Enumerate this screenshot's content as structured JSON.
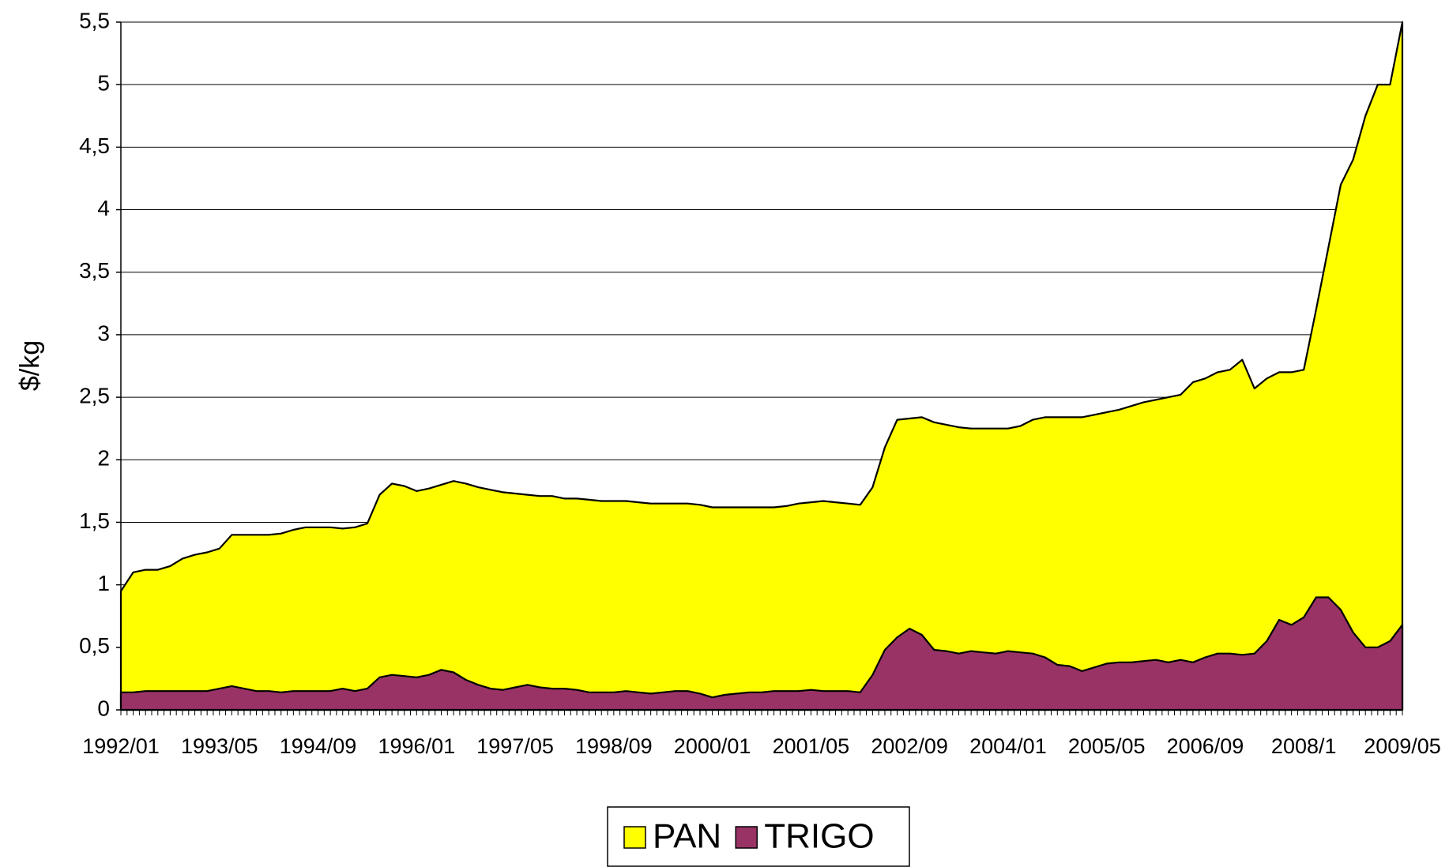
{
  "chart_data": {
    "type": "area",
    "y_label": "$/kg",
    "categories": [
      "1992/01",
      null,
      null,
      null,
      null,
      null,
      null,
      null,
      "1993/05",
      null,
      null,
      null,
      null,
      null,
      null,
      null,
      "1994/09",
      null,
      null,
      null,
      null,
      null,
      null,
      null,
      "1996/01",
      null,
      null,
      null,
      null,
      null,
      null,
      null,
      "1997/05",
      null,
      null,
      null,
      null,
      null,
      null,
      null,
      "1998/09",
      null,
      null,
      null,
      null,
      null,
      null,
      null,
      "2000/01",
      null,
      null,
      null,
      null,
      null,
      null,
      null,
      "2001/05",
      null,
      null,
      null,
      null,
      null,
      null,
      null,
      "2002/09",
      null,
      null,
      null,
      null,
      null,
      null,
      null,
      "2004/01",
      null,
      null,
      null,
      null,
      null,
      null,
      null,
      "2005/05",
      null,
      null,
      null,
      null,
      null,
      null,
      null,
      "2006/09",
      null,
      null,
      null,
      null,
      null,
      null,
      null,
      "2008/1",
      null,
      null,
      null,
      null,
      null,
      null,
      null,
      "2009/05"
    ],
    "series": [
      {
        "name": "PAN",
        "color": "#ffff00",
        "values": [
          0.95,
          1.1,
          1.12,
          1.12,
          1.15,
          1.21,
          1.24,
          1.26,
          1.29,
          1.4,
          1.4,
          1.4,
          1.4,
          1.41,
          1.44,
          1.46,
          1.46,
          1.46,
          1.45,
          1.46,
          1.49,
          1.72,
          1.81,
          1.79,
          1.75,
          1.77,
          1.8,
          1.83,
          1.81,
          1.78,
          1.76,
          1.74,
          1.73,
          1.72,
          1.71,
          1.71,
          1.69,
          1.69,
          1.68,
          1.67,
          1.67,
          1.67,
          1.66,
          1.65,
          1.65,
          1.65,
          1.65,
          1.64,
          1.62,
          1.62,
          1.62,
          1.62,
          1.62,
          1.62,
          1.63,
          1.65,
          1.66,
          1.67,
          1.66,
          1.65,
          1.64,
          1.78,
          2.1,
          2.32,
          2.33,
          2.34,
          2.3,
          2.28,
          2.26,
          2.25,
          2.25,
          2.25,
          2.25,
          2.27,
          2.32,
          2.34,
          2.34,
          2.34,
          2.34,
          2.36,
          2.38,
          2.4,
          2.43,
          2.46,
          2.48,
          2.5,
          2.52,
          2.62,
          2.65,
          2.7,
          2.72,
          2.8,
          2.57,
          2.65,
          2.7,
          2.7,
          2.72,
          3.2,
          3.7,
          4.2,
          4.4,
          4.75,
          5.0,
          5.0,
          5.5
        ]
      },
      {
        "name": "TRIGO",
        "color": "#993366",
        "values": [
          0.14,
          0.14,
          0.15,
          0.15,
          0.15,
          0.15,
          0.15,
          0.15,
          0.17,
          0.19,
          0.17,
          0.15,
          0.15,
          0.14,
          0.15,
          0.15,
          0.15,
          0.15,
          0.17,
          0.15,
          0.17,
          0.26,
          0.28,
          0.27,
          0.26,
          0.28,
          0.32,
          0.3,
          0.24,
          0.2,
          0.17,
          0.16,
          0.18,
          0.2,
          0.18,
          0.17,
          0.17,
          0.16,
          0.14,
          0.14,
          0.14,
          0.15,
          0.14,
          0.13,
          0.14,
          0.15,
          0.15,
          0.13,
          0.1,
          0.12,
          0.13,
          0.14,
          0.14,
          0.15,
          0.15,
          0.15,
          0.16,
          0.15,
          0.15,
          0.15,
          0.14,
          0.28,
          0.48,
          0.58,
          0.65,
          0.6,
          0.48,
          0.47,
          0.45,
          0.47,
          0.46,
          0.45,
          0.47,
          0.46,
          0.45,
          0.42,
          0.36,
          0.35,
          0.31,
          0.34,
          0.37,
          0.38,
          0.38,
          0.39,
          0.4,
          0.38,
          0.4,
          0.38,
          0.42,
          0.45,
          0.45,
          0.44,
          0.45,
          0.55,
          0.72,
          0.68,
          0.74,
          0.9,
          0.9,
          0.8,
          0.62,
          0.5,
          0.5,
          0.55,
          0.68
        ]
      }
    ],
    "ylim": [
      0,
      5.5
    ],
    "yticks": [
      0,
      {
        "value": 0.5,
        "label": "0,5"
      },
      1,
      {
        "value": 1.5,
        "label": "1,5"
      },
      2,
      {
        "value": 2.5,
        "label": "2,5"
      },
      3,
      {
        "value": 3.5,
        "label": "3,5"
      },
      4,
      {
        "value": 4.5,
        "label": "4,5"
      },
      5,
      {
        "value": 5.5,
        "label": "5,5"
      }
    ],
    "grid": true
  }
}
